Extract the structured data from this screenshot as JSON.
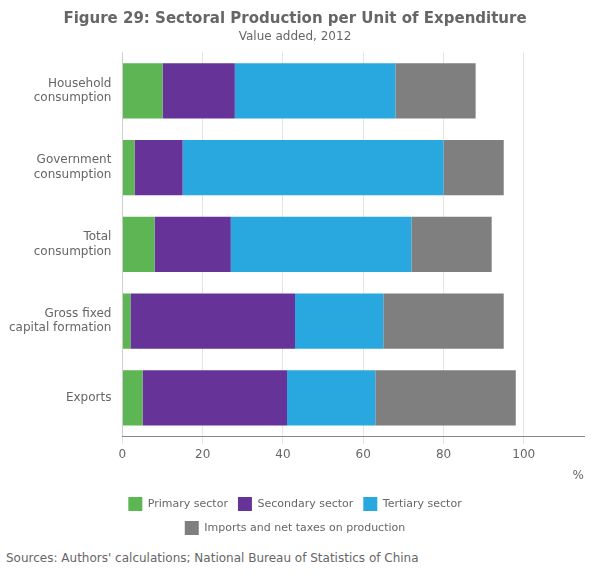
{
  "chart_data": {
    "type": "bar",
    "orientation": "horizontal",
    "stacked": true,
    "title": "Figure 29: Sectoral Production per Unit of Expenditure",
    "subtitle": "Value added, 2012",
    "xlabel": "%",
    "source": "Sources:   Authors' calculations; National Bureau of Statistics of China",
    "categories": [
      "Household\nconsumption",
      "Government\nconsumption",
      "Total\nconsumption",
      "Gross fixed\ncapital formation",
      "Exports"
    ],
    "series": [
      {
        "name": "Primary sector",
        "color": "#5db554",
        "values": [
          10,
          3,
          8,
          2,
          5
        ]
      },
      {
        "name": "Secondary sector",
        "color": "#663399",
        "values": [
          18,
          12,
          19,
          41,
          36
        ]
      },
      {
        "name": "Tertiary sector",
        "color": "#29a8e0",
        "values": [
          40,
          65,
          45,
          22,
          22
        ]
      },
      {
        "name": "Imports and net\ntaxes on production",
        "color": "#7f7f7f",
        "values": [
          20,
          15,
          20,
          30,
          35
        ]
      }
    ],
    "xlim": [
      0,
      115
    ],
    "xticks": [
      0,
      20,
      40,
      60,
      80,
      100
    ],
    "grid": true,
    "legend": "bottom"
  }
}
